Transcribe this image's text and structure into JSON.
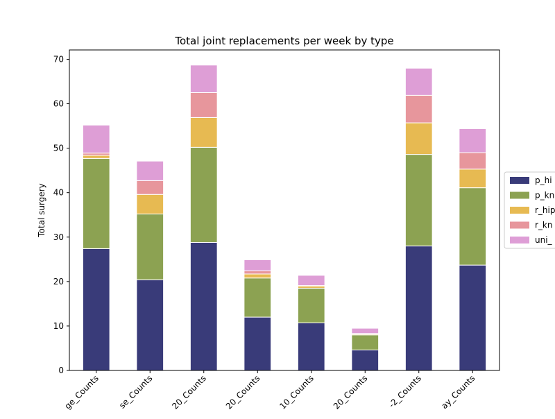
{
  "chart_data": {
    "type": "bar",
    "stacked": true,
    "title": "Total joint replacements per week by type",
    "xlabel": "",
    "ylabel": "Total surgery",
    "ylim": [
      0,
      72.1
    ],
    "yticks": [
      0,
      10,
      20,
      30,
      40,
      50,
      60,
      70
    ],
    "categories": [
      "ge_Counts",
      "se_Counts",
      "20_Counts",
      "20_Counts",
      "10_Counts",
      "20_Counts",
      "-2_Counts",
      "ay_Counts"
    ],
    "series": [
      {
        "name": "p_hi",
        "color": "#393b79",
        "values": [
          27.4,
          20.4,
          28.8,
          12.0,
          10.7,
          4.6,
          28.0,
          23.7
        ]
      },
      {
        "name": "p_kn",
        "color": "#8ca252",
        "values": [
          20.3,
          14.8,
          21.4,
          8.8,
          7.8,
          3.4,
          20.6,
          17.4
        ]
      },
      {
        "name": "r_hip",
        "color": "#e7ba52",
        "values": [
          0.7,
          4.4,
          6.7,
          0.9,
          0.5,
          0.2,
          7.1,
          4.2
        ]
      },
      {
        "name": "r_kn",
        "color": "#e7969c",
        "values": [
          0.5,
          3.1,
          5.6,
          0.7,
          0.1,
          0.1,
          6.2,
          3.7
        ]
      },
      {
        "name": "uni_",
        "color": "#de9ed6",
        "values": [
          6.3,
          4.4,
          6.2,
          2.5,
          2.3,
          1.2,
          6.1,
          5.4
        ]
      }
    ],
    "legend_position": "right"
  }
}
